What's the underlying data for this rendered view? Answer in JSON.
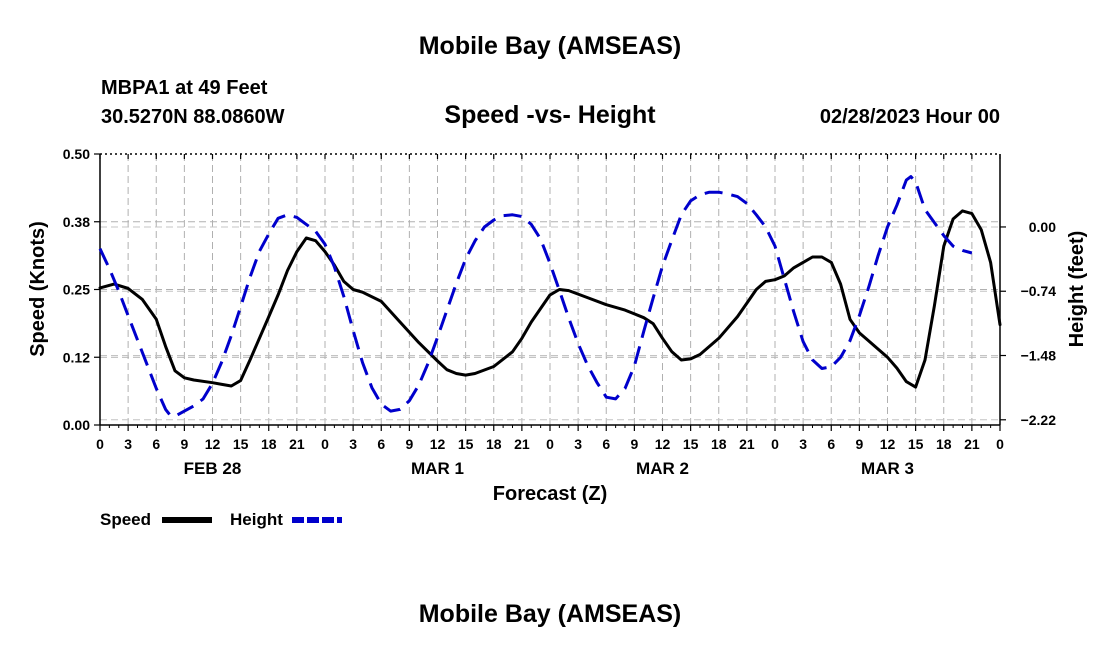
{
  "page": {
    "title": "Mobile Bay (AMSEAS)",
    "station": "MBPA1 at 49 Feet",
    "coords": "30.5270N  88.0860W",
    "run": "02/28/2023 Hour 00",
    "bottom_title": "Mobile Bay (AMSEAS)"
  },
  "chart_data": {
    "type": "line",
    "title": "Speed -vs- Height",
    "xlabel": "Forecast (Z)",
    "ylabel_left": "Speed (Knots)",
    "ylabel_right": "Height (feet)",
    "x_range_hours": [
      0,
      96
    ],
    "y_left_range": [
      0,
      0.5
    ],
    "y_left_ticks": [
      "0.00",
      "0.12",
      "0.25",
      "0.38",
      "0.50"
    ],
    "y_left_tick_values": [
      0,
      0.125,
      0.25,
      0.375,
      0.5
    ],
    "y_right_range": [
      -2.28,
      0.84
    ],
    "y_right_ticks": [
      "0.00",
      "-0.74",
      "-1.48",
      "-2.22"
    ],
    "y_right_tick_values": [
      0,
      -0.74,
      -1.48,
      -2.22
    ],
    "x_tick_labels": [
      "0",
      "3",
      "6",
      "9",
      "12",
      "15",
      "18",
      "21",
      "0",
      "3",
      "6",
      "9",
      "12",
      "15",
      "18",
      "21",
      "0",
      "3",
      "6",
      "9",
      "12",
      "15",
      "18",
      "21",
      "0",
      "3",
      "6",
      "9",
      "12",
      "15",
      "18",
      "21",
      "0"
    ],
    "date_labels": [
      {
        "label": "FEB 28",
        "hour": 12
      },
      {
        "label": "MAR 1",
        "hour": 36
      },
      {
        "label": "MAR 2",
        "hour": 60
      },
      {
        "label": "MAR 3",
        "hour": 84
      }
    ],
    "grid": true,
    "legend": "bottom-left",
    "series": [
      {
        "name": "Speed",
        "axis": "left",
        "color": "#000000",
        "style": "solid",
        "points": [
          [
            0,
            0.253
          ],
          [
            1.5,
            0.26
          ],
          [
            3,
            0.252
          ],
          [
            4.5,
            0.232
          ],
          [
            6,
            0.195
          ],
          [
            7,
            0.145
          ],
          [
            8,
            0.1
          ],
          [
            9,
            0.087
          ],
          [
            10,
            0.083
          ],
          [
            12,
            0.078
          ],
          [
            13,
            0.075
          ],
          [
            14,
            0.072
          ],
          [
            15,
            0.082
          ],
          [
            16,
            0.12
          ],
          [
            18,
            0.2
          ],
          [
            19,
            0.24
          ],
          [
            20,
            0.285
          ],
          [
            21,
            0.32
          ],
          [
            22,
            0.345
          ],
          [
            23,
            0.34
          ],
          [
            24,
            0.32
          ],
          [
            25,
            0.295
          ],
          [
            26,
            0.265
          ],
          [
            27,
            0.25
          ],
          [
            28,
            0.245
          ],
          [
            30,
            0.228
          ],
          [
            32,
            0.19
          ],
          [
            34,
            0.152
          ],
          [
            36,
            0.118
          ],
          [
            37,
            0.102
          ],
          [
            38,
            0.095
          ],
          [
            39,
            0.092
          ],
          [
            40,
            0.095
          ],
          [
            42,
            0.108
          ],
          [
            44,
            0.135
          ],
          [
            45,
            0.16
          ],
          [
            46,
            0.19
          ],
          [
            47,
            0.215
          ],
          [
            48,
            0.24
          ],
          [
            49,
            0.25
          ],
          [
            50,
            0.248
          ],
          [
            52,
            0.235
          ],
          [
            54,
            0.222
          ],
          [
            56,
            0.212
          ],
          [
            58,
            0.198
          ],
          [
            59,
            0.187
          ],
          [
            60,
            0.16
          ],
          [
            61,
            0.135
          ],
          [
            62,
            0.12
          ],
          [
            63,
            0.122
          ],
          [
            64,
            0.13
          ],
          [
            66,
            0.16
          ],
          [
            68,
            0.2
          ],
          [
            69,
            0.225
          ],
          [
            70,
            0.25
          ],
          [
            71,
            0.265
          ],
          [
            72,
            0.268
          ],
          [
            73,
            0.275
          ],
          [
            74,
            0.29
          ],
          [
            75,
            0.3
          ],
          [
            76,
            0.31
          ],
          [
            77,
            0.31
          ],
          [
            78,
            0.3
          ],
          [
            79,
            0.26
          ],
          [
            80,
            0.195
          ],
          [
            81,
            0.17
          ],
          [
            82,
            0.155
          ],
          [
            83,
            0.14
          ],
          [
            84,
            0.125
          ],
          [
            85,
            0.105
          ],
          [
            86,
            0.08
          ],
          [
            87,
            0.07
          ],
          [
            88,
            0.12
          ],
          [
            89,
            0.22
          ],
          [
            90,
            0.33
          ],
          [
            91,
            0.38
          ],
          [
            92,
            0.395
          ],
          [
            93,
            0.39
          ],
          [
            94,
            0.36
          ],
          [
            95,
            0.3
          ],
          [
            96,
            0.185
          ]
        ]
      },
      {
        "name": "Height",
        "axis": "right",
        "color": "#0000cc",
        "style": "dashed",
        "points": [
          [
            0,
            -0.25
          ],
          [
            1,
            -0.48
          ],
          [
            2,
            -0.74
          ],
          [
            3,
            -1.02
          ],
          [
            4,
            -1.3
          ],
          [
            5,
            -1.58
          ],
          [
            6,
            -1.86
          ],
          [
            7,
            -2.1
          ],
          [
            7.5,
            -2.17
          ],
          [
            8,
            -2.18
          ],
          [
            9,
            -2.12
          ],
          [
            10,
            -2.06
          ],
          [
            11,
            -1.98
          ],
          [
            12,
            -1.8
          ],
          [
            13,
            -1.55
          ],
          [
            14,
            -1.25
          ],
          [
            15,
            -0.92
          ],
          [
            16,
            -0.58
          ],
          [
            17,
            -0.28
          ],
          [
            18,
            -0.08
          ],
          [
            19,
            0.1
          ],
          [
            20,
            0.14
          ],
          [
            21,
            0.11
          ],
          [
            22,
            0.03
          ],
          [
            23,
            -0.05
          ],
          [
            24,
            -0.2
          ],
          [
            25,
            -0.46
          ],
          [
            26,
            -0.8
          ],
          [
            27,
            -1.19
          ],
          [
            28,
            -1.56
          ],
          [
            29,
            -1.85
          ],
          [
            30,
            -2.04
          ],
          [
            31,
            -2.12
          ],
          [
            32,
            -2.1
          ],
          [
            33,
            -2.0
          ],
          [
            34,
            -1.82
          ],
          [
            35,
            -1.57
          ],
          [
            36,
            -1.27
          ],
          [
            37,
            -0.96
          ],
          [
            38,
            -0.65
          ],
          [
            39,
            -0.37
          ],
          [
            40,
            -0.16
          ],
          [
            41,
            0.0
          ],
          [
            42,
            0.08
          ],
          [
            43,
            0.13
          ],
          [
            44,
            0.14
          ],
          [
            45,
            0.12
          ],
          [
            46,
            0.03
          ],
          [
            47,
            -0.14
          ],
          [
            48,
            -0.42
          ],
          [
            49,
            -0.73
          ],
          [
            50,
            -1.05
          ],
          [
            51,
            -1.34
          ],
          [
            52,
            -1.59
          ],
          [
            53,
            -1.79
          ],
          [
            54,
            -1.96
          ],
          [
            55,
            -1.98
          ],
          [
            56,
            -1.86
          ],
          [
            57,
            -1.6
          ],
          [
            58,
            -1.2
          ],
          [
            59,
            -0.82
          ],
          [
            60,
            -0.45
          ],
          [
            61,
            -0.15
          ],
          [
            62,
            0.14
          ],
          [
            63,
            0.3
          ],
          [
            64,
            0.37
          ],
          [
            65,
            0.4
          ],
          [
            66,
            0.4
          ],
          [
            67,
            0.38
          ],
          [
            68,
            0.35
          ],
          [
            69,
            0.27
          ],
          [
            70,
            0.14
          ],
          [
            71,
            0.0
          ],
          [
            72,
            -0.22
          ],
          [
            73,
            -0.6
          ],
          [
            74,
            -0.98
          ],
          [
            75,
            -1.32
          ],
          [
            76,
            -1.53
          ],
          [
            77,
            -1.63
          ],
          [
            78,
            -1.61
          ],
          [
            79,
            -1.5
          ],
          [
            80,
            -1.31
          ],
          [
            81,
            -1.02
          ],
          [
            82,
            -0.69
          ],
          [
            83,
            -0.33
          ],
          [
            84,
            0.0
          ],
          [
            85,
            0.25
          ],
          [
            86,
            0.54
          ],
          [
            86.5,
            0.58
          ],
          [
            87,
            0.52
          ],
          [
            88,
            0.2
          ],
          [
            89,
            0.05
          ],
          [
            90,
            -0.1
          ],
          [
            91,
            -0.22
          ],
          [
            92,
            -0.27
          ],
          [
            93,
            -0.3
          ]
        ]
      }
    ]
  }
}
